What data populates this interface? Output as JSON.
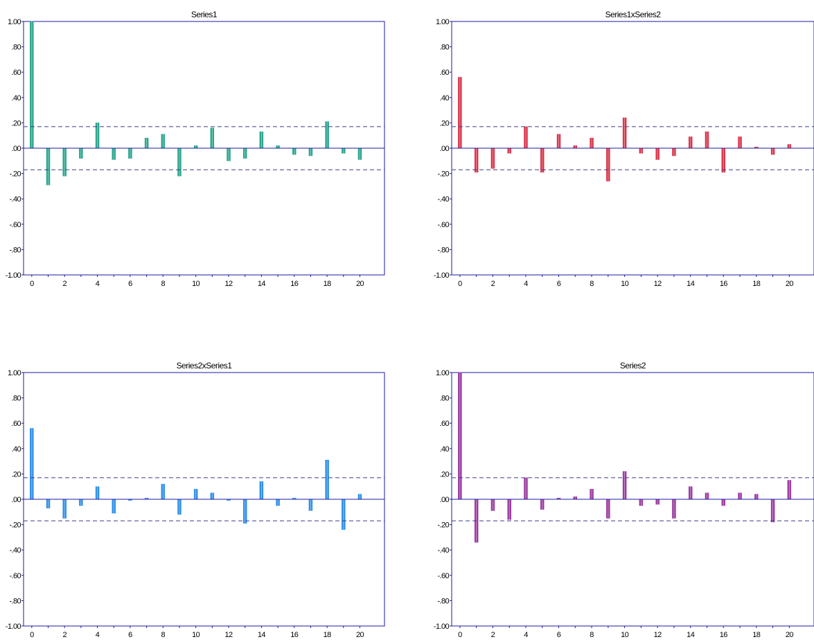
{
  "chart_data": [
    {
      "type": "bar",
      "title": "Series1",
      "color": "#2aa58c",
      "x": [
        0,
        1,
        2,
        3,
        4,
        5,
        6,
        7,
        8,
        9,
        10,
        11,
        12,
        13,
        14,
        15,
        16,
        17,
        18,
        19,
        20
      ],
      "values": [
        1.0,
        -0.29,
        -0.22,
        -0.08,
        0.2,
        -0.09,
        -0.08,
        0.08,
        0.11,
        -0.22,
        0.02,
        0.16,
        -0.1,
        -0.08,
        0.13,
        0.02,
        -0.05,
        -0.06,
        0.21,
        -0.04,
        -0.09
      ],
      "confidence_band": [
        -0.17,
        0.17
      ],
      "ylim": [
        -1.0,
        1.0
      ],
      "xlim": [
        -0.5,
        21.5
      ],
      "yticks": [
        "-1.00",
        "-.80",
        "-.60",
        "-.40",
        "-.20",
        ".00",
        ".20",
        ".40",
        ".60",
        ".80",
        "1.00"
      ],
      "xticks": [
        "0",
        "2",
        "4",
        "6",
        "8",
        "10",
        "12",
        "14",
        "16",
        "18",
        "20"
      ]
    },
    {
      "type": "bar",
      "title": "Series1xSeries2",
      "color": "#d9344a",
      "x": [
        0,
        1,
        2,
        3,
        4,
        5,
        6,
        7,
        8,
        9,
        10,
        11,
        12,
        13,
        14,
        15,
        16,
        17,
        18,
        19,
        20
      ],
      "values": [
        0.56,
        -0.19,
        -0.16,
        -0.04,
        0.17,
        -0.19,
        0.11,
        0.02,
        0.08,
        -0.26,
        0.24,
        -0.04,
        -0.09,
        -0.06,
        0.09,
        0.13,
        -0.19,
        0.09,
        0.01,
        -0.05,
        0.03
      ],
      "confidence_band": [
        -0.17,
        0.17
      ],
      "ylim": [
        -1.0,
        1.0
      ],
      "xlim": [
        -0.5,
        21.5
      ],
      "yticks": [
        "-1.00",
        "-.80",
        "-.60",
        "-.40",
        "-.20",
        ".00",
        ".20",
        ".40",
        ".60",
        ".80",
        "1.00"
      ],
      "xticks": [
        "0",
        "2",
        "4",
        "6",
        "8",
        "10",
        "12",
        "14",
        "16",
        "18",
        "20"
      ]
    },
    {
      "type": "bar",
      "title": "Series2xSeries1",
      "color": "#2f8fe8",
      "x": [
        0,
        1,
        2,
        3,
        4,
        5,
        6,
        7,
        8,
        9,
        10,
        11,
        12,
        13,
        14,
        15,
        16,
        17,
        18,
        19,
        20
      ],
      "values": [
        0.56,
        -0.07,
        -0.15,
        -0.05,
        0.1,
        -0.11,
        -0.01,
        0.01,
        0.12,
        -0.12,
        0.08,
        0.05,
        -0.01,
        -0.19,
        0.14,
        -0.05,
        0.01,
        -0.09,
        0.31,
        -0.24,
        0.04
      ],
      "confidence_band": [
        -0.17,
        0.17
      ],
      "ylim": [
        -1.0,
        1.0
      ],
      "xlim": [
        -0.5,
        21.5
      ],
      "yticks": [
        "-1.00",
        "-.80",
        "-.60",
        "-.40",
        "-.20",
        ".00",
        ".20",
        ".40",
        ".60",
        ".80",
        "1.00"
      ],
      "xticks": [
        "0",
        "2",
        "4",
        "6",
        "8",
        "10",
        "12",
        "14",
        "16",
        "18",
        "20"
      ]
    },
    {
      "type": "bar",
      "title": "Series2",
      "color": "#9b3aa0",
      "x": [
        0,
        1,
        2,
        3,
        4,
        5,
        6,
        7,
        8,
        9,
        10,
        11,
        12,
        13,
        14,
        15,
        16,
        17,
        18,
        19,
        20
      ],
      "values": [
        1.0,
        -0.34,
        -0.09,
        -0.16,
        0.17,
        -0.08,
        0.01,
        0.02,
        0.08,
        -0.15,
        0.22,
        -0.05,
        -0.04,
        -0.15,
        0.1,
        0.05,
        -0.05,
        0.05,
        0.04,
        -0.18,
        0.15
      ],
      "confidence_band": [
        -0.17,
        0.17
      ],
      "ylim": [
        -1.0,
        1.0
      ],
      "xlim": [
        -0.5,
        21.5
      ],
      "yticks": [
        "-1.00",
        "-.80",
        "-.60",
        "-.40",
        "-.20",
        ".00",
        ".20",
        ".40",
        ".60",
        ".80",
        "1.00"
      ],
      "xticks": [
        "0",
        "2",
        "4",
        "6",
        "8",
        "10",
        "12",
        "14",
        "16",
        "18",
        "20"
      ]
    }
  ]
}
